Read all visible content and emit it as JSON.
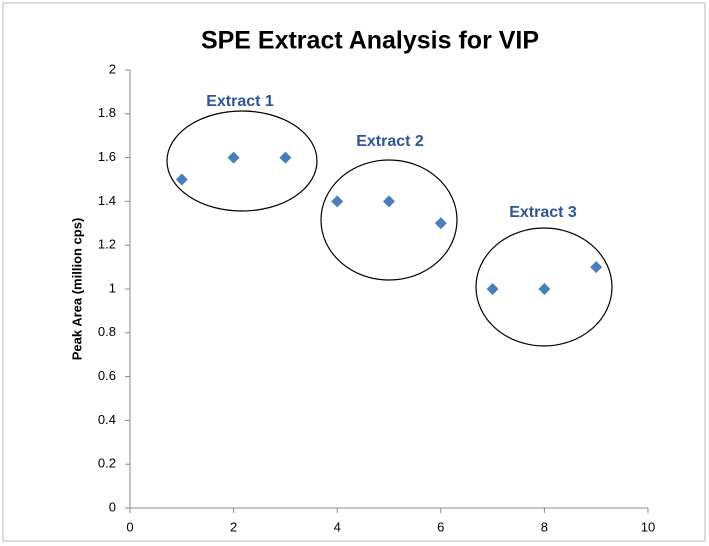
{
  "chart_data": {
    "type": "scatter",
    "title": "SPE Extract Analysis for VIP",
    "y_label": "Peak Area (million cps)",
    "x": [
      1,
      2,
      3,
      4,
      5,
      6,
      7,
      8,
      9
    ],
    "series": [
      {
        "color": "#4a7ebb",
        "values": [
          1.5,
          1.6,
          1.6,
          1.4,
          1.4,
          1.3,
          1.0,
          1.0,
          1.1
        ]
      }
    ],
    "xlim": [
      0,
      10
    ],
    "xticks": [
      0,
      2,
      4,
      6,
      8,
      10
    ],
    "ylim": [
      0,
      2
    ],
    "yticks": [
      0,
      0.2,
      0.4,
      0.6,
      0.8,
      1,
      1.2,
      1.4,
      1.6,
      1.8,
      2
    ],
    "grid": false,
    "annotations": [
      "Extract 1",
      "Extract 2",
      "Extract 3"
    ],
    "annotation_color": "#2e5597"
  }
}
